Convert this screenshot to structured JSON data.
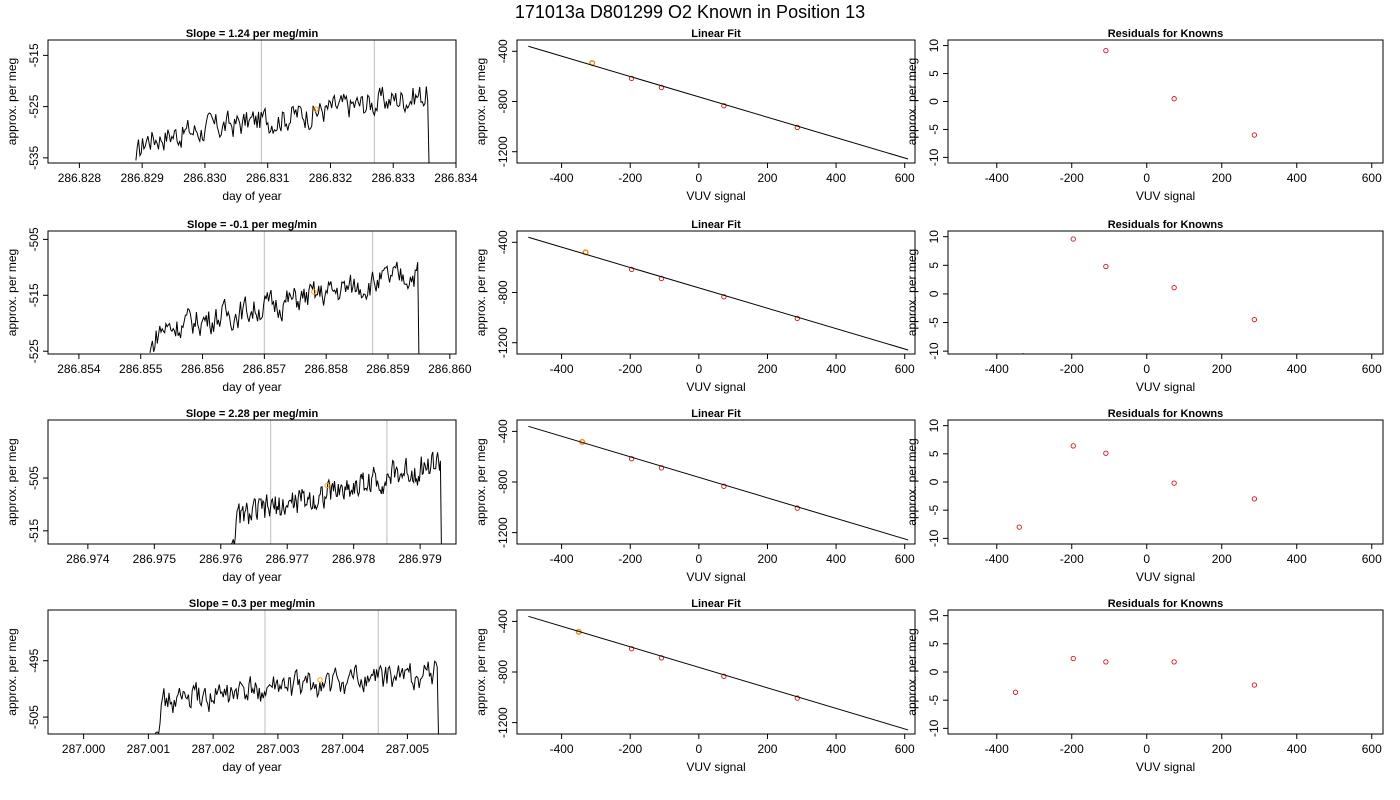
{
  "figure": {
    "title": "171013a     D801299   O2 Known in Position  13"
  },
  "chart_data": [
    {
      "row": 0,
      "col": 0,
      "type": "line",
      "title": "Slope =  1.24  per meg/min",
      "xlabel": "day of year",
      "ylabel": "approx. per meg",
      "xlim": [
        286.8275,
        286.834
      ],
      "ylim": [
        -536,
        -512
      ],
      "xticks": [
        "286.828",
        "286.829",
        "286.830",
        "286.831",
        "286.832",
        "286.833",
        "286.834"
      ],
      "yticks": [
        "-515",
        "-525",
        "-535"
      ],
      "vlines": [
        286.8309,
        286.8327
      ],
      "series": {
        "x_start": 286.8289,
        "x_end": 286.83357,
        "y_start": -535.5,
        "y_end": -536,
        "trend_start": -531.5,
        "trend_end": -522.5
      },
      "marker": {
        "x": 286.83177,
        "y": -525.5,
        "color": "#FFA500"
      }
    },
    {
      "row": 0,
      "col": 1,
      "type": "scatter",
      "title": "Linear Fit",
      "xlabel": "VUV signal",
      "ylabel": "approx. per meg",
      "xlim": [
        -530,
        630
      ],
      "ylim": [
        -1290,
        -310
      ],
      "xticks": [
        "-400",
        "-200",
        "0",
        "200",
        "400",
        "600"
      ],
      "yticks": [
        "-400",
        "-800",
        "-1200"
      ],
      "fit_line": {
        "x": [
          -497,
          610
        ],
        "y": [
          -360,
          -1258
        ]
      },
      "points": {
        "x": [
          -311,
          -196,
          -109,
          73,
          287
        ],
        "y": [
          -494,
          -616,
          -688,
          -834,
          -1006
        ]
      },
      "highlight": {
        "x": -311,
        "y": -494,
        "color": "#FFA500"
      }
    },
    {
      "row": 0,
      "col": 2,
      "type": "scatter",
      "title": "Residuals for Knowns",
      "xlabel": "VUV signal",
      "ylabel": "approx. per meg",
      "xlim": [
        -530,
        630
      ],
      "ylim": [
        -11,
        11
      ],
      "xticks": [
        "-400",
        "-200",
        "0",
        "200",
        "400",
        "600"
      ],
      "yticks": [
        "10",
        "5",
        "0",
        "-5",
        "-10"
      ],
      "points": {
        "x": [
          -109,
          73,
          287
        ],
        "y": [
          9.1,
          0.5,
          -6.0
        ]
      }
    },
    {
      "row": 1,
      "col": 0,
      "type": "line",
      "title": "Slope =  -0.1  per meg/min",
      "xlabel": "day of year",
      "ylabel": "approx. per meg",
      "xlim": [
        286.8535,
        286.8601
      ],
      "ylim": [
        -525.5,
        -503.5
      ],
      "xticks": [
        "286.854",
        "286.855",
        "286.856",
        "286.857",
        "286.858",
        "286.859",
        "286.860"
      ],
      "yticks": [
        "-505",
        "-515",
        "-525"
      ],
      "vlines": [
        286.857,
        286.85875
      ],
      "series": {
        "x_start": 286.85515,
        "x_end": 286.8595,
        "y_start": -525.3,
        "y_end": -525.8,
        "trend_start": -521.5,
        "trend_end": -511
      },
      "marker": {
        "x": 286.8578,
        "y": -514.4,
        "color": "#FFA500"
      }
    },
    {
      "row": 1,
      "col": 1,
      "type": "scatter",
      "title": "Linear Fit",
      "xlabel": "VUV signal",
      "ylabel": "approx. per meg",
      "xlim": [
        -530,
        630
      ],
      "ylim": [
        -1290,
        -310
      ],
      "xticks": [
        "-400",
        "-200",
        "0",
        "200",
        "400",
        "600"
      ],
      "yticks": [
        "-400",
        "-800",
        "-1200"
      ],
      "fit_line": {
        "x": [
          -497,
          610
        ],
        "y": [
          -360,
          -1258
        ]
      },
      "points": {
        "x": [
          -330,
          -196,
          -109,
          73,
          287
        ],
        "y": [
          -480,
          -616,
          -688,
          -834,
          -1006
        ]
      },
      "highlight": {
        "x": -330,
        "y": -480,
        "color": "#FFA500"
      }
    },
    {
      "row": 1,
      "col": 2,
      "type": "scatter",
      "title": "Residuals for Knowns",
      "xlabel": "VUV signal",
      "ylabel": "approx. per meg",
      "xlim": [
        -530,
        630
      ],
      "ylim": [
        -10.5,
        11
      ],
      "xticks": [
        "-400",
        "-200",
        "0",
        "200",
        "400",
        "600"
      ],
      "yticks": [
        "10",
        "5",
        "0",
        "-5",
        "-10"
      ],
      "points": {
        "x": [
          -330,
          -196,
          -109,
          73,
          287
        ],
        "y": [
          -10.8,
          9.6,
          4.8,
          1.1,
          -4.5
        ]
      }
    },
    {
      "row": 2,
      "col": 0,
      "type": "line",
      "title": "Slope =  2.28  per meg/min",
      "xlabel": "day of year",
      "ylabel": "approx. per meg",
      "xlim": [
        286.9734,
        286.97954
      ],
      "ylim": [
        -517.5,
        -494
      ],
      "xticks": [
        "286.974",
        "286.975",
        "286.976",
        "286.977",
        "286.978",
        "286.979"
      ],
      "yticks": [
        "-505",
        "-515"
      ],
      "vlines": [
        286.97675,
        286.9785
      ],
      "series": {
        "x_start": 286.97616,
        "x_end": 286.97932,
        "y_start": -517.5,
        "y_end": -518,
        "trend_start": -513,
        "trend_end": -502
      },
      "marker": {
        "x": 286.9776,
        "y": -506.4,
        "color": "#FFA500"
      }
    },
    {
      "row": 2,
      "col": 1,
      "type": "scatter",
      "title": "Linear Fit",
      "xlabel": "VUV signal",
      "ylabel": "approx. per meg",
      "xlim": [
        -530,
        630
      ],
      "ylim": [
        -1290,
        -310
      ],
      "xticks": [
        "-400",
        "-200",
        "0",
        "200",
        "400",
        "600"
      ],
      "yticks": [
        "-400",
        "-800",
        "-1200"
      ],
      "fit_line": {
        "x": [
          -497,
          610
        ],
        "y": [
          -360,
          -1258
        ]
      },
      "points": {
        "x": [
          -340,
          -196,
          -109,
          73,
          287
        ],
        "y": [
          -483,
          -616,
          -688,
          -834,
          -1006
        ]
      },
      "highlight": {
        "x": -340,
        "y": -483,
        "color": "#FFA500"
      }
    },
    {
      "row": 2,
      "col": 2,
      "type": "scatter",
      "title": "Residuals for Knowns",
      "xlabel": "VUV signal",
      "ylabel": "approx. per meg",
      "xlim": [
        -530,
        630
      ],
      "ylim": [
        -11,
        11
      ],
      "xticks": [
        "-400",
        "-200",
        "0",
        "200",
        "400",
        "600"
      ],
      "yticks": [
        "10",
        "5",
        "0",
        "-5",
        "-10"
      ],
      "points": {
        "x": [
          -340,
          -196,
          -109,
          73,
          287
        ],
        "y": [
          -8.0,
          6.4,
          5.1,
          -0.2,
          -3.0
        ]
      }
    },
    {
      "row": 3,
      "col": 0,
      "type": "line",
      "title": "Slope =  0.3  per meg/min",
      "xlabel": "day of year",
      "ylabel": "approx. per meg",
      "xlim": [
        286.99945,
        287.00575
      ],
      "ylim": [
        -508,
        -486
      ],
      "xticks": [
        "287.000",
        "287.001",
        "287.002",
        "287.003",
        "287.004",
        "287.005"
      ],
      "yticks": [
        "-495",
        "-505"
      ],
      "vlines": [
        287.0028,
        287.00455
      ],
      "series": {
        "x_start": 287.0011,
        "x_end": 287.00548,
        "y_start": -508.2,
        "y_end": -508.5,
        "trend_start": -502.5,
        "trend_end": -497
      },
      "marker": {
        "x": 287.00365,
        "y": -498.4,
        "color": "#FFA500"
      }
    },
    {
      "row": 3,
      "col": 1,
      "type": "scatter",
      "title": "Linear Fit",
      "xlabel": "VUV signal",
      "ylabel": "approx. per meg",
      "xlim": [
        -530,
        630
      ],
      "ylim": [
        -1290,
        -310
      ],
      "xticks": [
        "-400",
        "-200",
        "0",
        "200",
        "400",
        "600"
      ],
      "yticks": [
        "-400",
        "-800",
        "-1200"
      ],
      "fit_line": {
        "x": [
          -497,
          610
        ],
        "y": [
          -360,
          -1258
        ]
      },
      "points": {
        "x": [
          -350,
          -196,
          -109,
          73,
          287
        ],
        "y": [
          -483,
          -616,
          -688,
          -834,
          -1006
        ]
      },
      "highlight": {
        "x": -350,
        "y": -483,
        "color": "#FFA500"
      }
    },
    {
      "row": 3,
      "col": 2,
      "type": "scatter",
      "title": "Residuals for Knowns",
      "xlabel": "VUV signal",
      "ylabel": "approx. per meg",
      "xlim": [
        -530,
        630
      ],
      "ylim": [
        -11,
        11
      ],
      "xticks": [
        "-400",
        "-200",
        "0",
        "200",
        "400",
        "600"
      ],
      "yticks": [
        "10",
        "5",
        "0",
        "-5",
        "-10"
      ],
      "points": {
        "x": [
          -350,
          -196,
          -109,
          73,
          287
        ],
        "y": [
          -3.6,
          2.4,
          1.8,
          1.8,
          -2.3
        ]
      }
    }
  ]
}
